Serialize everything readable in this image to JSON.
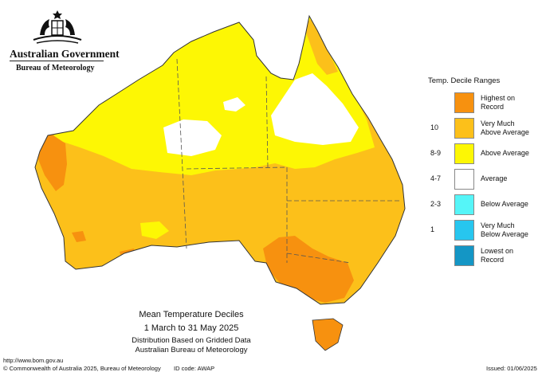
{
  "header": {
    "gov_title": "Australian Government",
    "gov_subtitle": "Bureau of Meteorology"
  },
  "legend": {
    "title": "Temp. Decile Ranges",
    "items": [
      {
        "range": "",
        "label_line1": "Highest on",
        "label_line2": "Record",
        "color": "#f7910f"
      },
      {
        "range": "10",
        "label_line1": "Very Much",
        "label_line2": "Above Average",
        "color": "#fcc01a"
      },
      {
        "range": "8-9",
        "label_line1": "Above Average",
        "label_line2": "",
        "color": "#fdf704"
      },
      {
        "range": "4-7",
        "label_line1": "Average",
        "label_line2": "",
        "color": "#ffffff"
      },
      {
        "range": "2-3",
        "label_line1": "Below Average",
        "label_line2": "",
        "color": "#55f5f8"
      },
      {
        "range": "1",
        "label_line1": "Very Much",
        "label_line2": "Below Average",
        "color": "#27c6ef"
      },
      {
        "range": "",
        "label_line1": "Lowest on",
        "label_line2": "Record",
        "color": "#1496c5"
      }
    ]
  },
  "map": {
    "title": "Mean Temperature Deciles",
    "period": "1 March to 31 May 2025",
    "distribution": "Distribution Based on Gridded Data",
    "source": "Australian Bureau of Meteorology"
  },
  "footer": {
    "url": "http://www.bom.gov.au",
    "copyright": "© Commonwealth of Australia 2025, Bureau of Meteorology",
    "id_code": "ID code: AWAP",
    "issued": "Issued: 01/06/2025"
  },
  "colors": {
    "highest": "#f7910f",
    "very_much_above": "#fcc01a",
    "above": "#fdf704",
    "average": "#ffffff",
    "border": "#333333"
  }
}
